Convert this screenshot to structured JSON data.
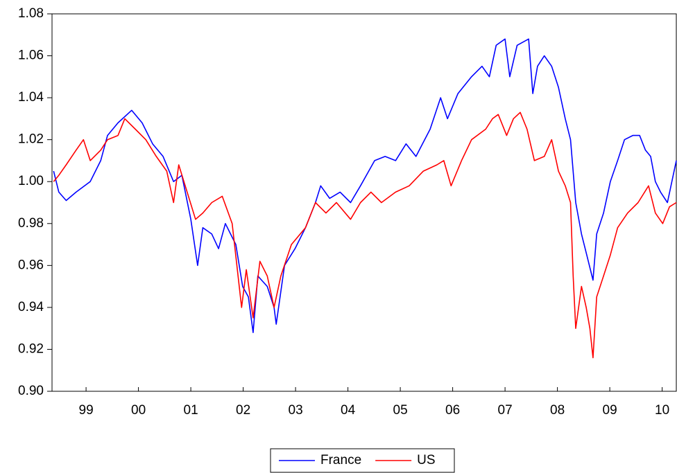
{
  "chart_data": {
    "type": "line",
    "legend": "bottom",
    "xlim": [
      1998.85,
      2010.77
    ],
    "xticks": [
      {
        "value": 1999.5,
        "label": "99"
      },
      {
        "value": 2000.5,
        "label": "00"
      },
      {
        "value": 2001.5,
        "label": "01"
      },
      {
        "value": 2002.5,
        "label": "02"
      },
      {
        "value": 2003.5,
        "label": "03"
      },
      {
        "value": 2004.5,
        "label": "04"
      },
      {
        "value": 2005.5,
        "label": "05"
      },
      {
        "value": 2006.5,
        "label": "06"
      },
      {
        "value": 2007.5,
        "label": "07"
      },
      {
        "value": 2008.5,
        "label": "08"
      },
      {
        "value": 2009.5,
        "label": "09"
      },
      {
        "value": 2010.5,
        "label": "10"
      }
    ],
    "ylim": [
      0.9,
      1.08
    ],
    "yticks": [
      {
        "value": 0.9,
        "label": "0.90"
      },
      0.92,
      0.94,
      0.96,
      0.98,
      {
        "value": 1.0,
        "label": "1.00"
      },
      1.02,
      1.04,
      1.06,
      1.08
    ],
    "series": [
      {
        "name": "France",
        "color": "#0000ff",
        "x": [
          1998.88,
          1998.98,
          1999.12,
          1999.31,
          1999.58,
          1999.78,
          1999.91,
          2000.11,
          2000.37,
          2000.57,
          2000.77,
          2000.97,
          2001.17,
          2001.33,
          2001.5,
          2001.63,
          2001.73,
          2001.9,
          2002.03,
          2002.16,
          2002.36,
          2002.49,
          2002.6,
          2002.69,
          2002.78,
          2002.96,
          2003.09,
          2003.13,
          2003.29,
          2003.49,
          2003.69,
          2003.88,
          2003.98,
          2004.15,
          2004.35,
          2004.55,
          2004.74,
          2005.01,
          2005.21,
          2005.41,
          2005.61,
          2005.8,
          2006.07,
          2006.27,
          2006.4,
          2006.6,
          2006.86,
          2007.06,
          2007.2,
          2007.33,
          2007.5,
          2007.59,
          2007.73,
          2007.95,
          2008.03,
          2008.12,
          2008.25,
          2008.39,
          2008.52,
          2008.65,
          2008.75,
          2008.85,
          2008.96,
          2009.06,
          2009.18,
          2009.25,
          2009.38,
          2009.51,
          2009.65,
          2009.78,
          2009.94,
          2010.07,
          2010.18,
          2010.28,
          2010.37,
          2010.47,
          2010.6,
          2010.77
        ],
        "values": [
          1.005,
          0.995,
          0.991,
          0.995,
          1.0,
          1.01,
          1.022,
          1.028,
          1.034,
          1.028,
          1.018,
          1.012,
          1.0,
          1.003,
          0.982,
          0.96,
          0.978,
          0.975,
          0.968,
          0.98,
          0.97,
          0.95,
          0.945,
          0.928,
          0.955,
          0.95,
          0.94,
          0.932,
          0.96,
          0.968,
          0.978,
          0.99,
          0.998,
          0.992,
          0.995,
          0.99,
          0.998,
          1.01,
          1.012,
          1.01,
          1.018,
          1.012,
          1.025,
          1.04,
          1.03,
          1.042,
          1.05,
          1.055,
          1.05,
          1.065,
          1.068,
          1.05,
          1.065,
          1.068,
          1.042,
          1.055,
          1.06,
          1.055,
          1.045,
          1.03,
          1.02,
          0.99,
          0.975,
          0.965,
          0.953,
          0.975,
          0.985,
          1.0,
          1.01,
          1.02,
          1.022,
          1.022,
          1.015,
          1.012,
          1.0,
          0.995,
          0.99,
          1.01
        ]
      },
      {
        "name": "US",
        "color": "#ff0000",
        "x": [
          1998.88,
          1998.98,
          1999.12,
          1999.31,
          1999.45,
          1999.58,
          1999.78,
          1999.91,
          2000.11,
          2000.24,
          2000.44,
          2000.64,
          2000.84,
          2001.04,
          2001.17,
          2001.27,
          2001.43,
          2001.59,
          2001.73,
          2001.9,
          2002.1,
          2002.29,
          2002.47,
          2002.56,
          2002.69,
          2002.82,
          2002.96,
          2003.09,
          2003.22,
          2003.42,
          2003.69,
          2003.88,
          2004.08,
          2004.28,
          2004.55,
          2004.74,
          2004.94,
          2005.14,
          2005.41,
          2005.67,
          2005.94,
          2006.2,
          2006.33,
          2006.47,
          2006.67,
          2006.86,
          2007.13,
          2007.26,
          2007.37,
          2007.53,
          2007.66,
          2007.79,
          2007.92,
          2008.06,
          2008.25,
          2008.39,
          2008.52,
          2008.65,
          2008.75,
          2008.8,
          2008.85,
          2008.96,
          2009.05,
          2009.12,
          2009.18,
          2009.25,
          2009.38,
          2009.51,
          2009.65,
          2009.84,
          2010.04,
          2010.24,
          2010.37,
          2010.51,
          2010.64,
          2010.77
        ],
        "values": [
          1.0,
          1.003,
          1.008,
          1.015,
          1.02,
          1.01,
          1.015,
          1.02,
          1.022,
          1.03,
          1.025,
          1.02,
          1.012,
          1.005,
          0.99,
          1.008,
          0.995,
          0.982,
          0.985,
          0.99,
          0.993,
          0.98,
          0.94,
          0.958,
          0.935,
          0.962,
          0.955,
          0.94,
          0.955,
          0.97,
          0.978,
          0.99,
          0.985,
          0.99,
          0.982,
          0.99,
          0.995,
          0.99,
          0.995,
          0.998,
          1.005,
          1.008,
          1.01,
          0.998,
          1.01,
          1.02,
          1.025,
          1.03,
          1.032,
          1.022,
          1.03,
          1.033,
          1.025,
          1.01,
          1.012,
          1.02,
          1.005,
          0.998,
          0.99,
          0.955,
          0.93,
          0.95,
          0.94,
          0.93,
          0.916,
          0.945,
          0.955,
          0.965,
          0.978,
          0.985,
          0.99,
          0.998,
          0.985,
          0.98,
          0.988,
          0.99
        ]
      }
    ]
  }
}
